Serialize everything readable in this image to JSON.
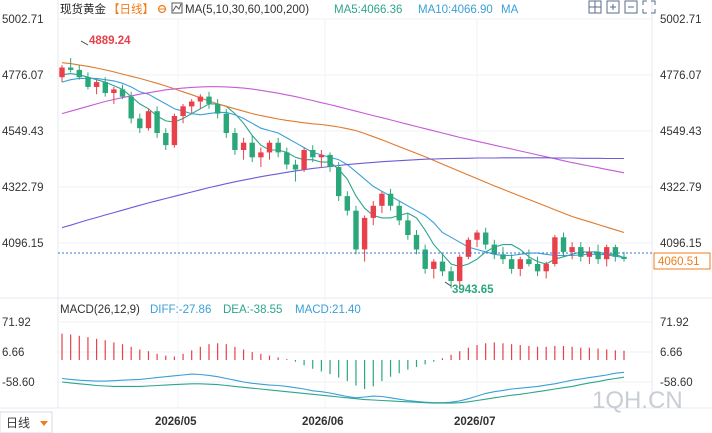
{
  "header": {
    "instrument": "现货黄金",
    "period": "【日线】",
    "ma_label": "MA(5,10,30,60,100,200)",
    "ma5": "MA5:4066.36",
    "ma10": "MA10:4066.90",
    "ma_extra": "MA"
  },
  "toolbar_icons": [
    "grid-layout-icon",
    "add-square-icon",
    "subtract-square-icon",
    "expand-icon"
  ],
  "price_axis": {
    "left_labels": [
      "5002.71",
      "4776.07",
      "4549.43",
      "4322.79",
      "4096.15"
    ],
    "right_labels": [
      "5002.71",
      "4776.07",
      "4549.43",
      "4322.79",
      "4096.15"
    ],
    "last_price": "4060.51",
    "high_annotation": "4889.24",
    "low_annotation": "3943.65"
  },
  "macd": {
    "label": "MACD(26,12,9)",
    "diff": "DIFF:-27.86",
    "dea": "DEA:-38.55",
    "macd": "MACD:21.40",
    "left_labels": [
      "71.92",
      "6.66",
      "-58.60"
    ],
    "right_labels": [
      "71.92",
      "6.66",
      "-58.60"
    ]
  },
  "x_labels": [
    "2026/05",
    "2026/06",
    "2026/07"
  ],
  "period_button": "日线",
  "watermark": "1QH.CN",
  "colors": {
    "up": "#e8414b",
    "down": "#2ba87a",
    "ma5": "#2ca58d",
    "ma10": "#3aa0d8",
    "ma30": "#e07a2e",
    "ma60": "#c65bd6",
    "ma100": "#6e5bd6",
    "accent": "#f07d1a"
  },
  "chart_data": {
    "type": "candlestick",
    "ylim": [
      3900,
      5050
    ],
    "candles": [
      [
        4810,
        4860,
        4790,
        4850
      ],
      [
        4850,
        4889,
        4830,
        4840
      ],
      [
        4840,
        4860,
        4800,
        4810
      ],
      [
        4810,
        4830,
        4760,
        4770
      ],
      [
        4770,
        4800,
        4740,
        4790
      ],
      [
        4790,
        4810,
        4730,
        4745
      ],
      [
        4745,
        4770,
        4700,
        4760
      ],
      [
        4760,
        4780,
        4720,
        4730
      ],
      [
        4730,
        4750,
        4620,
        4640
      ],
      [
        4640,
        4660,
        4580,
        4600
      ],
      [
        4600,
        4680,
        4590,
        4670
      ],
      [
        4670,
        4690,
        4560,
        4580
      ],
      [
        4580,
        4600,
        4510,
        4530
      ],
      [
        4530,
        4660,
        4520,
        4650
      ],
      [
        4650,
        4700,
        4620,
        4690
      ],
      [
        4690,
        4720,
        4660,
        4710
      ],
      [
        4710,
        4740,
        4680,
        4730
      ],
      [
        4730,
        4750,
        4680,
        4700
      ],
      [
        4700,
        4720,
        4640,
        4660
      ],
      [
        4660,
        4680,
        4560,
        4580
      ],
      [
        4580,
        4600,
        4490,
        4510
      ],
      [
        4510,
        4560,
        4470,
        4540
      ],
      [
        4540,
        4570,
        4460,
        4480
      ],
      [
        4480,
        4520,
        4440,
        4500
      ],
      [
        4500,
        4550,
        4470,
        4540
      ],
      [
        4540,
        4560,
        4480,
        4500
      ],
      [
        4500,
        4520,
        4430,
        4450
      ],
      [
        4450,
        4470,
        4380,
        4430
      ],
      [
        4430,
        4520,
        4420,
        4510
      ],
      [
        4510,
        4530,
        4460,
        4480
      ],
      [
        4480,
        4510,
        4440,
        4490
      ],
      [
        4490,
        4500,
        4420,
        4440
      ],
      [
        4440,
        4460,
        4300,
        4320
      ],
      [
        4320,
        4340,
        4240,
        4260
      ],
      [
        4260,
        4280,
        4080,
        4100
      ],
      [
        4100,
        4240,
        4050,
        4230
      ],
      [
        4230,
        4300,
        4200,
        4280
      ],
      [
        4280,
        4340,
        4250,
        4330
      ],
      [
        4330,
        4350,
        4260,
        4280
      ],
      [
        4280,
        4300,
        4200,
        4220
      ],
      [
        4220,
        4250,
        4140,
        4160
      ],
      [
        4160,
        4180,
        4080,
        4100
      ],
      [
        4100,
        4120,
        4000,
        4020
      ],
      [
        4020,
        4060,
        3980,
        4050
      ],
      [
        4050,
        4080,
        3990,
        4010
      ],
      [
        4010,
        4030,
        3940,
        3970
      ],
      [
        3970,
        4080,
        3944,
        4070
      ],
      [
        4070,
        4150,
        4060,
        4140
      ],
      [
        4140,
        4180,
        4110,
        4170
      ],
      [
        4170,
        4190,
        4100,
        4120
      ],
      [
        4120,
        4140,
        4060,
        4080
      ],
      [
        4080,
        4110,
        4040,
        4060
      ],
      [
        4060,
        4080,
        4000,
        4020
      ],
      [
        4020,
        4070,
        3990,
        4060
      ],
      [
        4060,
        4100,
        4030,
        4040
      ],
      [
        4040,
        4070,
        3990,
        4010
      ],
      [
        4010,
        4050,
        3980,
        4040
      ],
      [
        4040,
        4160,
        4030,
        4150
      ],
      [
        4150,
        4170,
        4070,
        4090
      ],
      [
        4090,
        4130,
        4060,
        4110
      ],
      [
        4110,
        4130,
        4050,
        4070
      ],
      [
        4070,
        4110,
        4040,
        4090
      ],
      [
        4090,
        4120,
        4040,
        4060
      ],
      [
        4060,
        4120,
        4030,
        4110
      ],
      [
        4110,
        4120,
        4050,
        4070
      ],
      [
        4070,
        4090,
        4050,
        4061
      ]
    ],
    "ma_series": {
      "ma5": [
        4820,
        4825,
        4820,
        4810,
        4800,
        4790,
        4775,
        4760,
        4730,
        4700,
        4680,
        4650,
        4630,
        4625,
        4640,
        4660,
        4680,
        4700,
        4700,
        4690,
        4660,
        4620,
        4570,
        4530,
        4510,
        4510,
        4500,
        4480,
        4470,
        4470,
        4460,
        4460,
        4430,
        4390,
        4320,
        4270,
        4240,
        4230,
        4230,
        4240,
        4250,
        4230,
        4180,
        4120,
        4080,
        4040,
        4030,
        4040,
        4060,
        4090,
        4110,
        4120,
        4120,
        4100,
        4070,
        4050,
        4040,
        4060,
        4070,
        4080,
        4090,
        4090,
        4090,
        4080,
        4080,
        4066
      ],
      "ma10": [
        4790,
        4800,
        4805,
        4805,
        4805,
        4800,
        4795,
        4785,
        4770,
        4750,
        4740,
        4720,
        4700,
        4680,
        4670,
        4660,
        4655,
        4660,
        4665,
        4665,
        4655,
        4640,
        4620,
        4600,
        4590,
        4580,
        4560,
        4540,
        4520,
        4500,
        4490,
        4480,
        4470,
        4450,
        4420,
        4390,
        4360,
        4340,
        4320,
        4300,
        4280,
        4260,
        4240,
        4210,
        4170,
        4150,
        4130,
        4110,
        4100,
        4090,
        4080,
        4075,
        4075,
        4080,
        4085,
        4085,
        4080,
        4075,
        4075,
        4075,
        4078,
        4080,
        4080,
        4078,
        4072,
        4067
      ],
      "ma30": [
        4870,
        4866,
        4860,
        4855,
        4848,
        4840,
        4832,
        4823,
        4814,
        4805,
        4795,
        4785,
        4774,
        4762,
        4750,
        4738,
        4725,
        4712,
        4700,
        4690,
        4680,
        4670,
        4660,
        4652,
        4645,
        4638,
        4632,
        4627,
        4622,
        4618,
        4615,
        4610,
        4605,
        4598,
        4590,
        4578,
        4565,
        4552,
        4538,
        4524,
        4510,
        4496,
        4482,
        4467,
        4452,
        4437,
        4422,
        4407,
        4392,
        4377,
        4362,
        4348,
        4334,
        4320,
        4306,
        4292,
        4278,
        4264,
        4250,
        4236,
        4225,
        4214,
        4203,
        4192,
        4181,
        4170
      ],
      "ma60": [
        4660,
        4670,
        4680,
        4690,
        4700,
        4710,
        4718,
        4726,
        4733,
        4740,
        4746,
        4752,
        4758,
        4762,
        4765,
        4768,
        4770,
        4771,
        4771,
        4770,
        4768,
        4765,
        4761,
        4756,
        4750,
        4744,
        4737,
        4730,
        4722,
        4714,
        4705,
        4697,
        4688,
        4679,
        4670,
        4661,
        4652,
        4643,
        4634,
        4625,
        4616,
        4607,
        4598,
        4589,
        4580,
        4571,
        4562,
        4554,
        4546,
        4538,
        4530,
        4522,
        4514,
        4506,
        4498,
        4490,
        4482,
        4474,
        4466,
        4458,
        4451,
        4444,
        4437,
        4430,
        4423,
        4416
      ],
      "ma100": [
        4190,
        4200,
        4211,
        4222,
        4232,
        4242,
        4252,
        4262,
        4272,
        4282,
        4292,
        4301,
        4310,
        4319,
        4328,
        4337,
        4346,
        4355,
        4363,
        4371,
        4379,
        4386,
        4393,
        4400,
        4406,
        4412,
        4418,
        4424,
        4429,
        4434,
        4438,
        4442,
        4446,
        4450,
        4453,
        4456,
        4459,
        4462,
        4464,
        4466,
        4468,
        4470,
        4472,
        4473,
        4474,
        4475,
        4476,
        4476,
        4477,
        4477,
        4477,
        4478,
        4478,
        4478,
        4478,
        4478,
        4478,
        4477,
        4477,
        4477,
        4476,
        4476,
        4476,
        4475,
        4475,
        4475
      ]
    },
    "macd_data": {
      "ylim": [
        -100,
        100
      ],
      "hist": [
        60,
        58,
        55,
        52,
        48,
        45,
        40,
        36,
        30,
        24,
        20,
        14,
        10,
        8,
        14,
        22,
        30,
        36,
        38,
        36,
        30,
        24,
        18,
        14,
        10,
        6,
        2,
        -4,
        -12,
        -20,
        -26,
        -32,
        -40,
        -48,
        -58,
        -66,
        -60,
        -48,
        -38,
        -30,
        -22,
        -16,
        -10,
        -4,
        4,
        12,
        20,
        28,
        34,
        38,
        40,
        38,
        36,
        34,
        32,
        30,
        30,
        32,
        32,
        30,
        28,
        28,
        26,
        24,
        22,
        21
      ],
      "diff": [
        -42,
        -44,
        -46,
        -47,
        -48,
        -48,
        -47,
        -46,
        -45,
        -44,
        -42,
        -40,
        -38,
        -36,
        -34,
        -32,
        -33,
        -35,
        -38,
        -42,
        -46,
        -50,
        -53,
        -55,
        -57,
        -58,
        -60,
        -63,
        -66,
        -70,
        -72,
        -75,
        -79,
        -83,
        -86,
        -84,
        -82,
        -83,
        -86,
        -89,
        -92,
        -94,
        -96,
        -97,
        -97,
        -96,
        -93,
        -88,
        -82,
        -76,
        -72,
        -69,
        -66,
        -64,
        -62,
        -60,
        -57,
        -54,
        -50,
        -46,
        -43,
        -40,
        -37,
        -34,
        -30,
        -28
      ],
      "dea": [
        -50,
        -52,
        -54,
        -56,
        -58,
        -59,
        -60,
        -60,
        -60,
        -60,
        -59,
        -58,
        -57,
        -56,
        -55,
        -54,
        -54,
        -55,
        -56,
        -58,
        -60,
        -62,
        -64,
        -66,
        -68,
        -70,
        -72,
        -74,
        -76,
        -78,
        -80,
        -82,
        -84,
        -86,
        -88,
        -90,
        -91,
        -92,
        -93,
        -94,
        -95,
        -96,
        -97,
        -98,
        -98,
        -98,
        -97,
        -95,
        -92,
        -89,
        -86,
        -83,
        -80,
        -78,
        -75,
        -72,
        -69,
        -66,
        -63,
        -60,
        -56,
        -52,
        -49,
        -45,
        -42,
        -39
      ]
    }
  }
}
